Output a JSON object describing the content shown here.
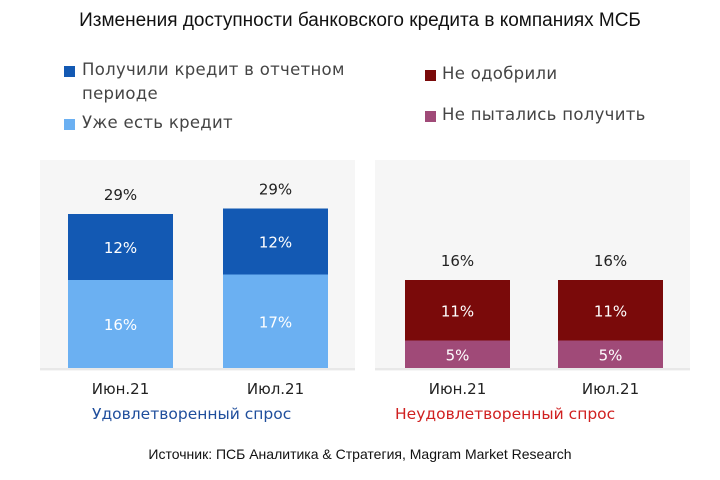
{
  "title": "Изменения доступности банковского кредита в компаниях МСБ",
  "source": "Источник: ПСБ Аналитика & Стратегия, Magram Market Research",
  "colors": {
    "received": "#1359b3",
    "existing": "#6bb0f2",
    "rejected": "#7a0a0a",
    "not_tried": "#a04a78",
    "satisfied_label": "#1f4e9c",
    "unsatisfied_label": "#d02020"
  },
  "chart_data": [
    {
      "type": "bar",
      "stacked": true,
      "group_label": "Удовлетворенный спрос",
      "categories": [
        "Июн.21",
        "Июл.21"
      ],
      "totals": [
        "29%",
        "29%"
      ],
      "series": [
        {
          "name": "Уже есть кредит",
          "values": [
            16,
            17
          ],
          "labels": [
            "16%",
            "17%"
          ]
        },
        {
          "name": "Получили кредит в отчетном периоде",
          "values": [
            12,
            12
          ],
          "labels": [
            "12%",
            "12%"
          ]
        }
      ],
      "ylim": [
        0,
        29
      ]
    },
    {
      "type": "bar",
      "stacked": true,
      "group_label": "Неудовлетворенный спрос",
      "categories": [
        "Июн.21",
        "Июл.21"
      ],
      "totals": [
        "16%",
        "16%"
      ],
      "series": [
        {
          "name": "Не пытались получить",
          "values": [
            5,
            5
          ],
          "labels": [
            "5%",
            "5%"
          ]
        },
        {
          "name": "Не одобрили",
          "values": [
            11,
            11
          ],
          "labels": [
            "11%",
            "11%"
          ]
        }
      ],
      "ylim": [
        0,
        29
      ]
    }
  ],
  "legend": [
    {
      "line1": "Получили кредит в отчетном",
      "line2": "периоде"
    },
    {
      "line1": "Уже есть кредит"
    },
    {
      "line1": "Не одобрили"
    },
    {
      "line1": "Не пытались получить"
    }
  ]
}
